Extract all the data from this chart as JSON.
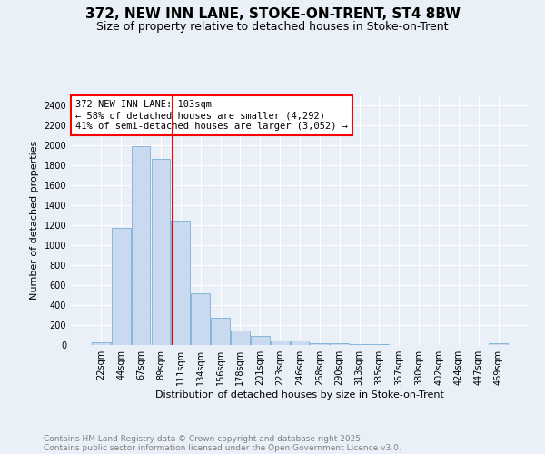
{
  "title_line1": "372, NEW INN LANE, STOKE-ON-TRENT, ST4 8BW",
  "title_line2": "Size of property relative to detached houses in Stoke-on-Trent",
  "xlabel": "Distribution of detached houses by size in Stoke-on-Trent",
  "ylabel": "Number of detached properties",
  "bin_labels": [
    "22sqm",
    "44sqm",
    "67sqm",
    "89sqm",
    "111sqm",
    "134sqm",
    "156sqm",
    "178sqm",
    "201sqm",
    "223sqm",
    "246sqm",
    "268sqm",
    "290sqm",
    "313sqm",
    "335sqm",
    "357sqm",
    "380sqm",
    "402sqm",
    "424sqm",
    "447sqm",
    "469sqm"
  ],
  "bar_heights": [
    25,
    1170,
    1990,
    1860,
    1245,
    520,
    275,
    150,
    90,
    45,
    45,
    20,
    20,
    5,
    5,
    2,
    2,
    2,
    2,
    2,
    15
  ],
  "bar_color": "#c9d9f0",
  "bar_edge_color": "#7aafd4",
  "vline_x_index": 3.6,
  "vline_color": "red",
  "annotation_text": "372 NEW INN LANE: 103sqm\n← 58% of detached houses are smaller (4,292)\n41% of semi-detached houses are larger (3,052) →",
  "annotation_box_color": "white",
  "annotation_box_edge": "red",
  "ylim": [
    0,
    2500
  ],
  "yticks": [
    0,
    200,
    400,
    600,
    800,
    1000,
    1200,
    1400,
    1600,
    1800,
    2000,
    2200,
    2400
  ],
  "background_color": "#eaf0f8",
  "grid_color": "white",
  "footer_line1": "Contains HM Land Registry data © Crown copyright and database right 2025.",
  "footer_line2": "Contains public sector information licensed under the Open Government Licence v3.0.",
  "title_fontsize": 11,
  "subtitle_fontsize": 9,
  "axis_label_fontsize": 8,
  "tick_fontsize": 7,
  "annotation_fontsize": 7.5,
  "footer_fontsize": 6.5
}
